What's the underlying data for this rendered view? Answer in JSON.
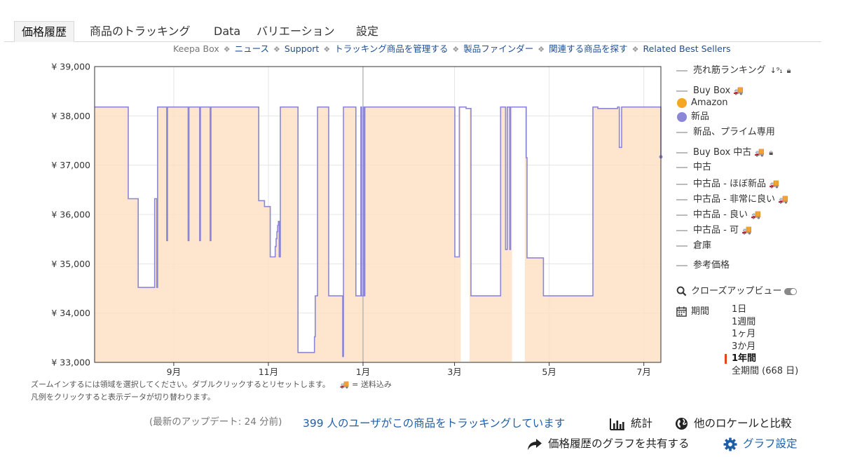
{
  "tabs": [
    {
      "label": "価格履歴"
    },
    {
      "label": "商品のトラッキング"
    },
    {
      "label": "Data"
    },
    {
      "label": "バリエーション"
    },
    {
      "label": "設定"
    }
  ],
  "subnav": {
    "items": [
      "Keepa Box",
      "ニュース",
      "Support",
      "トラッキング商品を管理する",
      "製品ファインダー",
      "関連する商品を探す",
      "Related Best Sellers"
    ]
  },
  "legend": {
    "sales_rank": "売れ筋ランキング",
    "buy_box": "Buy Box",
    "amazon": "Amazon",
    "new": "新品",
    "new_prime": "新品、プライム専用",
    "buy_box_used": "Buy Box 中古",
    "used": "中古",
    "used_like_new": "中古品 - ほぼ新品",
    "used_very_good": "中古品 - 非常に良い",
    "used_good": "中古品 - 良い",
    "used_acceptable": "中古品 - 可",
    "warehouse": "倉庫",
    "list_price": "参考価格",
    "closeup": "クローズアップビュー",
    "period": "期間",
    "periods": [
      "1日",
      "1週間",
      "1ヶ月",
      "3か月",
      "1年間",
      "全期間 (668 日)"
    ],
    "selected_period": "1年間",
    "colors": {
      "amazon": "#f5a623",
      "new": "#8b87d6",
      "inactive": "#bbbbbb"
    }
  },
  "notes": {
    "zoom": "ズームインするには領域を選択してください。ダブルクリックするとリセットします。",
    "shipping": "= 送料込み",
    "legend_tip": "凡例をクリックすると表示データが切り替わります。"
  },
  "footer": {
    "updated": "(最新のアップデート: 24 分前)",
    "tracking": "399 人のユーザがこの商品をトラッキングしています",
    "stats": "統計",
    "compare": "他のロケールと比較",
    "share": "価格履歴のグラフを共有する",
    "settings": "グラフ設定"
  },
  "chart_data": {
    "type": "line",
    "ylim": [
      33000,
      39000
    ],
    "yticks": [
      39000,
      38000,
      37000,
      36000,
      35000,
      34000,
      33000
    ],
    "ytick_labels": [
      "¥ 39,000",
      "¥ 38,000",
      "¥ 37,000",
      "¥ 36,000",
      "¥ 35,000",
      "¥ 34,000",
      "¥ 33,000"
    ],
    "xlim": [
      0,
      365
    ],
    "xticks": [
      {
        "label": "9月",
        "pos": 51
      },
      {
        "label": "11月",
        "pos": 112
      },
      {
        "label": "1月",
        "pos": 173
      },
      {
        "label": "3月",
        "pos": 232
      },
      {
        "label": "5月",
        "pos": 293
      },
      {
        "label": "7月",
        "pos": 354
      }
    ],
    "grid": true,
    "series": [
      {
        "name": "新品",
        "color": "#8b87d6",
        "fill": "#fde1c6",
        "points": [
          [
            0,
            38180
          ],
          [
            21.7,
            38180
          ],
          [
            21.7,
            36320
          ],
          [
            28.1,
            36320
          ],
          [
            28.1,
            34520
          ],
          [
            38.7,
            34520
          ],
          [
            38.7,
            36320
          ],
          [
            40.1,
            36320
          ],
          [
            40.1,
            34520
          ],
          [
            40.6,
            34520
          ],
          [
            40.6,
            38180
          ],
          [
            46.5,
            38180
          ],
          [
            46.5,
            35470
          ],
          [
            47.0,
            35470
          ],
          [
            47.0,
            38180
          ],
          [
            60.3,
            38180
          ],
          [
            60.3,
            35470
          ],
          [
            60.8,
            35470
          ],
          [
            60.8,
            38180
          ],
          [
            67.7,
            38180
          ],
          [
            67.7,
            35470
          ],
          [
            68.2,
            35470
          ],
          [
            68.2,
            38180
          ],
          [
            74.5,
            38180
          ],
          [
            74.5,
            35470
          ],
          [
            75.0,
            35470
          ],
          [
            75.0,
            38180
          ],
          [
            105.8,
            38180
          ],
          [
            105.8,
            36280
          ],
          [
            109.5,
            36280
          ],
          [
            109.5,
            36160
          ],
          [
            113.2,
            36160
          ],
          [
            113.2,
            35140
          ],
          [
            116.4,
            35140
          ],
          [
            116.4,
            35350
          ],
          [
            117.0,
            35350
          ],
          [
            117.0,
            35510
          ],
          [
            117.5,
            35510
          ],
          [
            117.5,
            35650
          ],
          [
            118.0,
            35650
          ],
          [
            118.0,
            35780
          ],
          [
            118.5,
            35780
          ],
          [
            118.5,
            35860
          ],
          [
            119.0,
            35860
          ],
          [
            119.0,
            35140
          ],
          [
            119.7,
            35140
          ],
          [
            119.7,
            38180
          ],
          [
            131.1,
            38180
          ],
          [
            131.1,
            33200
          ],
          [
            141.7,
            33200
          ],
          [
            141.7,
            33520
          ],
          [
            142.2,
            33520
          ],
          [
            142.2,
            34350
          ],
          [
            143.7,
            34350
          ],
          [
            143.7,
            38180
          ],
          [
            150.9,
            38180
          ],
          [
            150.9,
            34350
          ],
          [
            159.9,
            34350
          ],
          [
            159.9,
            33120
          ],
          [
            160.4,
            33120
          ],
          [
            160.4,
            38180
          ],
          [
            168.4,
            38180
          ],
          [
            168.4,
            34350
          ],
          [
            171.6,
            34350
          ],
          [
            171.6,
            38180
          ],
          [
            172.1,
            38180
          ],
          [
            172.1,
            34350
          ],
          [
            173.2,
            34350
          ],
          [
            173.2,
            38180
          ],
          [
            173.7,
            38180
          ],
          [
            173.7,
            34350
          ],
          [
            174.2,
            34350
          ],
          [
            174.2,
            38180
          ],
          [
            232.2,
            38180
          ],
          [
            232.2,
            35140
          ],
          [
            235.1,
            35140
          ],
          [
            235.1,
            38180
          ],
          [
            239.4,
            38180
          ],
          [
            239.4,
            38150
          ],
          [
            242.6,
            38150
          ],
          [
            242.6,
            34350
          ],
          [
            261.7,
            34350
          ],
          [
            261.7,
            38180
          ],
          [
            264.9,
            38180
          ],
          [
            264.9,
            35290
          ],
          [
            266.0,
            35290
          ],
          [
            266.0,
            38180
          ],
          [
            267.6,
            38180
          ],
          [
            267.6,
            35290
          ],
          [
            268.1,
            35290
          ],
          [
            268.1,
            38180
          ],
          [
            278.2,
            38180
          ],
          [
            278.2,
            37150
          ],
          [
            278.7,
            37150
          ],
          [
            278.7,
            35120
          ],
          [
            289.3,
            35120
          ],
          [
            289.3,
            34350
          ],
          [
            321.2,
            34350
          ],
          [
            321.2,
            38180
          ],
          [
            324.4,
            38180
          ],
          [
            324.4,
            38150
          ],
          [
            337.1,
            38150
          ],
          [
            337.1,
            38180
          ],
          [
            338.2,
            38180
          ],
          [
            338.2,
            37360
          ],
          [
            339.7,
            37360
          ],
          [
            339.7,
            38180
          ],
          [
            365,
            38180
          ],
          [
            365,
            37170
          ]
        ]
      }
    ],
    "fill_gaps": [
      [
        235.1,
        242.6
      ],
      [
        268.1,
        278.2
      ]
    ],
    "vertical_marker": 173
  }
}
